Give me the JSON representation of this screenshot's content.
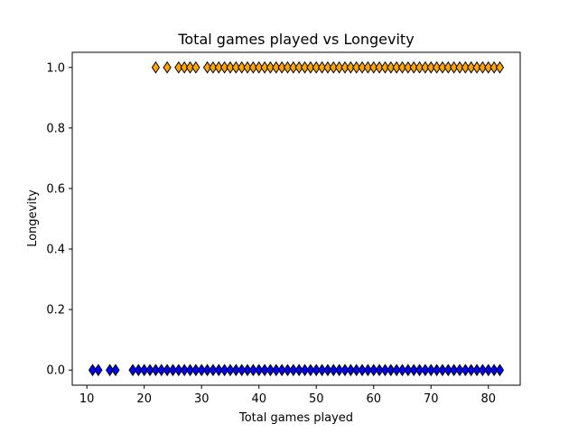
{
  "chart_data": {
    "type": "scatter",
    "title": "Total games played vs Longevity",
    "xlabel": "Total games played",
    "ylabel": "Longevity",
    "xlim": [
      7.45,
      85.55
    ],
    "ylim": [
      -0.05,
      1.05
    ],
    "x_ticks": [
      10,
      20,
      30,
      40,
      50,
      60,
      70,
      80
    ],
    "y_ticks": [
      0.0,
      0.2,
      0.4,
      0.6,
      0.8,
      1.0
    ],
    "x_tick_labels": [
      "10",
      "20",
      "30",
      "40",
      "50",
      "60",
      "70",
      "80"
    ],
    "y_tick_labels": [
      "0.0",
      "0.2",
      "0.4",
      "0.6",
      "0.8",
      "1.0"
    ],
    "grid": false,
    "marker": "diamond",
    "series": [
      {
        "color": "#0000ff",
        "edgecolor": "#000000",
        "y": 0,
        "x": [
          11,
          12,
          14,
          15,
          18,
          19,
          20,
          21,
          22,
          23,
          24,
          25,
          26,
          27,
          28,
          29,
          30,
          31,
          32,
          33,
          34,
          35,
          36,
          37,
          38,
          39,
          40,
          41,
          42,
          43,
          44,
          45,
          46,
          47,
          48,
          49,
          50,
          51,
          52,
          53,
          54,
          55,
          56,
          57,
          58,
          59,
          60,
          61,
          62,
          63,
          64,
          65,
          66,
          67,
          68,
          69,
          70,
          71,
          72,
          73,
          74,
          75,
          76,
          77,
          78,
          79,
          80,
          81,
          82
        ]
      },
      {
        "color": "#ffa500",
        "edgecolor": "#000000",
        "y": 1,
        "x": [
          22,
          24,
          26,
          27,
          28,
          29,
          31,
          32,
          33,
          34,
          35,
          36,
          37,
          38,
          39,
          40,
          41,
          42,
          43,
          44,
          45,
          46,
          47,
          48,
          49,
          50,
          51,
          52,
          53,
          54,
          55,
          56,
          57,
          58,
          59,
          60,
          61,
          62,
          63,
          64,
          65,
          66,
          67,
          68,
          69,
          70,
          71,
          72,
          73,
          74,
          75,
          76,
          77,
          78,
          79,
          80,
          81,
          82
        ]
      }
    ]
  }
}
